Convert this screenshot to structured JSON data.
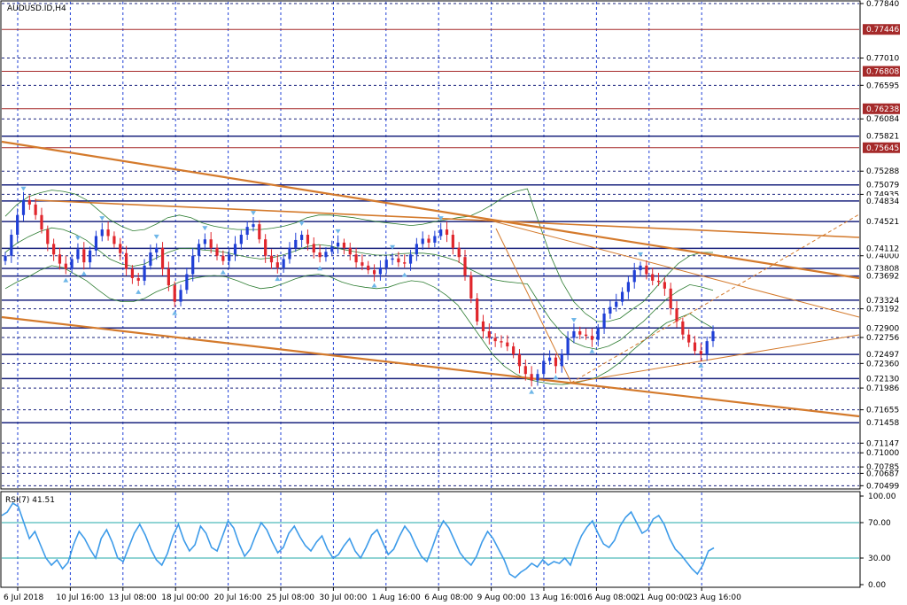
{
  "chart_title": "AUDUSD.ID,H4",
  "rsi_label": "RSI(7) 41.51",
  "colors": {
    "bull_candle": "#1f3fd6",
    "bear_candle": "#e0262c",
    "grid": "#1f3fd6",
    "hline_blue": "#1a237e",
    "hline_red": "#a52a2a",
    "trendline": "#d47a2c",
    "bollinger": "#2e7d32",
    "rsi_line": "#3d9be9",
    "rsi_level": "#22aaaa",
    "fractal": "#6fb7e8"
  },
  "chart_data": [
    {
      "type": "candlestick",
      "symbol": "AUDUSD.ID",
      "timeframe": "H4",
      "ylim": [
        0.7049,
        0.7784
      ],
      "price_ticks": [
        "0.77840",
        "0.77010",
        "0.76595",
        "0.76084",
        "0.75288",
        "0.74935",
        "0.74000",
        "0.73192",
        "0.72756",
        "0.72360",
        "0.71986",
        "0.71655",
        "0.71147",
        "0.71000",
        "0.70785",
        "0.70687",
        "0.70499"
      ],
      "price_tags_red": [
        "0.77446",
        "0.76808",
        "0.76238",
        "0.75645"
      ],
      "price_tags_blue": [
        "0.75821",
        "0.75079",
        "0.74834",
        "0.74521",
        "0.74112",
        "0.73808",
        "0.73692",
        "0.73324",
        "0.72900",
        "0.72497",
        "0.72130",
        "0.71458"
      ],
      "time_labels": [
        "6 Jul 2018",
        "10 Jul 16:00",
        "13 Jul 08:00",
        "18 Jul 00:00",
        "20 Jul 16:00",
        "25 Jul 08:00",
        "30 Jul 00:00",
        "1 Aug 16:00",
        "6 Aug 08:00",
        "9 Aug 00:00",
        "13 Aug 16:00",
        "16 Aug 08:00",
        "21 Aug 00:00",
        "23 Aug 16:00"
      ],
      "close_path": [
        0.74,
        0.7432,
        0.7462,
        0.7485,
        0.7478,
        0.7462,
        0.744,
        0.7418,
        0.7402,
        0.7388,
        0.738,
        0.7395,
        0.741,
        0.739,
        0.7408,
        0.743,
        0.744,
        0.743,
        0.7418,
        0.7404,
        0.738,
        0.7366,
        0.7362,
        0.7385,
        0.7405,
        0.7412,
        0.738,
        0.7355,
        0.733,
        0.7348,
        0.7372,
        0.74,
        0.7418,
        0.7425,
        0.7412,
        0.74,
        0.7392,
        0.7402,
        0.7418,
        0.7432,
        0.7444,
        0.7448,
        0.7425,
        0.74,
        0.739,
        0.7382,
        0.7395,
        0.7412,
        0.7424,
        0.7432,
        0.7418,
        0.7405,
        0.7398,
        0.7406,
        0.7414,
        0.742,
        0.7412,
        0.7402,
        0.739,
        0.7385,
        0.7378,
        0.7372,
        0.7382,
        0.7394,
        0.7396,
        0.739,
        0.7388,
        0.7402,
        0.7418,
        0.7426,
        0.742,
        0.743,
        0.744,
        0.7432,
        0.7412,
        0.7398,
        0.737,
        0.7335,
        0.73,
        0.7285,
        0.7275,
        0.727,
        0.7268,
        0.7262,
        0.725,
        0.7232,
        0.722,
        0.721,
        0.722,
        0.724,
        0.7245,
        0.7232,
        0.725,
        0.7275,
        0.7285,
        0.728,
        0.7278,
        0.7272,
        0.729,
        0.7312,
        0.7322,
        0.733,
        0.7345,
        0.736,
        0.7378,
        0.7385,
        0.7372,
        0.7362,
        0.736,
        0.735,
        0.732,
        0.73,
        0.728,
        0.7268,
        0.7255,
        0.725,
        0.727,
        0.7285
      ],
      "bands_upper": [
        0.746,
        0.7478,
        0.749,
        0.7496,
        0.75,
        0.7498,
        0.7494,
        0.7485,
        0.747,
        0.7455,
        0.7445,
        0.7438,
        0.744,
        0.7448,
        0.7458,
        0.7462,
        0.7458,
        0.745,
        0.7445,
        0.7442,
        0.744,
        0.744,
        0.744,
        0.7442,
        0.7445,
        0.745,
        0.7458,
        0.7462,
        0.7462,
        0.746,
        0.7458,
        0.7455,
        0.7452,
        0.745,
        0.7448,
        0.7446,
        0.7448,
        0.7452,
        0.7455,
        0.7458,
        0.746,
        0.7468,
        0.7478,
        0.749,
        0.7498,
        0.7502,
        0.745,
        0.74,
        0.736,
        0.733,
        0.7312,
        0.73,
        0.73,
        0.7305,
        0.7318,
        0.733,
        0.735,
        0.737,
        0.7388,
        0.74,
        0.7405,
        0.7405
      ],
      "bands_lower": [
        0.735,
        0.736,
        0.7368,
        0.7378,
        0.7385,
        0.7382,
        0.7372,
        0.7362,
        0.7348,
        0.7335,
        0.733,
        0.733,
        0.7335,
        0.7345,
        0.7352,
        0.736,
        0.7365,
        0.7368,
        0.737,
        0.7368,
        0.7362,
        0.7355,
        0.735,
        0.7352,
        0.7358,
        0.7365,
        0.737,
        0.7372,
        0.7368,
        0.736,
        0.7355,
        0.7352,
        0.735,
        0.7352,
        0.7358,
        0.7362,
        0.736,
        0.7352,
        0.734,
        0.7325,
        0.73,
        0.7275,
        0.725,
        0.7232,
        0.722,
        0.7212,
        0.7208,
        0.7205,
        0.7204,
        0.7206,
        0.721,
        0.7215,
        0.7225,
        0.7238,
        0.7255,
        0.727,
        0.7285,
        0.7298,
        0.7305,
        0.7312,
        0.73,
        0.729
      ]
    },
    {
      "type": "line",
      "name": "RSI(7)",
      "ylim": [
        0,
        100
      ],
      "y_ticks": [
        "100.00",
        "70.00",
        "30.00",
        "0.00"
      ],
      "levels": [
        70,
        30
      ],
      "values": [
        78,
        82,
        92,
        88,
        70,
        52,
        60,
        45,
        30,
        22,
        28,
        18,
        25,
        45,
        60,
        52,
        40,
        30,
        52,
        62,
        48,
        30,
        26,
        42,
        58,
        68,
        56,
        40,
        28,
        22,
        35,
        55,
        68,
        50,
        38,
        45,
        66,
        58,
        42,
        38,
        55,
        72,
        64,
        46,
        32,
        40,
        56,
        70,
        62,
        48,
        36,
        42,
        58,
        66,
        54,
        44,
        38,
        48,
        55,
        40,
        30,
        34,
        44,
        52,
        38,
        30,
        42,
        56,
        62,
        48,
        34,
        40,
        54,
        66,
        58,
        44,
        32,
        26,
        42,
        60,
        72,
        64,
        50,
        36,
        28,
        22,
        32,
        48,
        60,
        52,
        40,
        28,
        12,
        8,
        14,
        18,
        24,
        20,
        28,
        22,
        26,
        24,
        30,
        22,
        40,
        55,
        65,
        72,
        58,
        46,
        42,
        50,
        66,
        76,
        82,
        70,
        58,
        62,
        74,
        78,
        68,
        52,
        40,
        34,
        26,
        18,
        12,
        22,
        38,
        41.51
      ]
    }
  ]
}
